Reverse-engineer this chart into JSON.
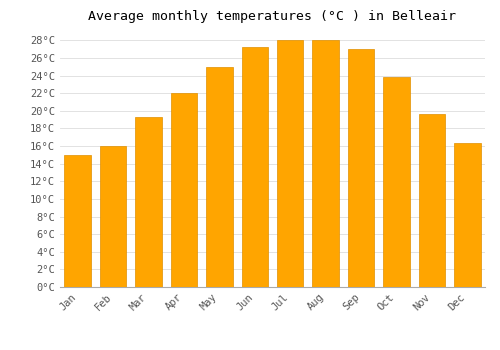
{
  "title": "Average monthly temperatures (°C ) in Belleair",
  "months": [
    "Jan",
    "Feb",
    "Mar",
    "Apr",
    "May",
    "Jun",
    "Jul",
    "Aug",
    "Sep",
    "Oct",
    "Nov",
    "Dec"
  ],
  "values": [
    15.0,
    16.0,
    19.3,
    22.0,
    25.0,
    27.2,
    28.0,
    28.0,
    27.0,
    23.8,
    19.6,
    16.3
  ],
  "bar_color_top": "#FFA500",
  "bar_color_bottom": "#F5A623",
  "bar_edge_color": "#E09000",
  "background_color": "#ffffff",
  "grid_color": "#dddddd",
  "ytick_step": 2,
  "ymin": 0,
  "ymax": 29,
  "title_fontsize": 9.5,
  "tick_fontsize": 7.5,
  "font_family": "monospace",
  "bar_width": 0.75
}
